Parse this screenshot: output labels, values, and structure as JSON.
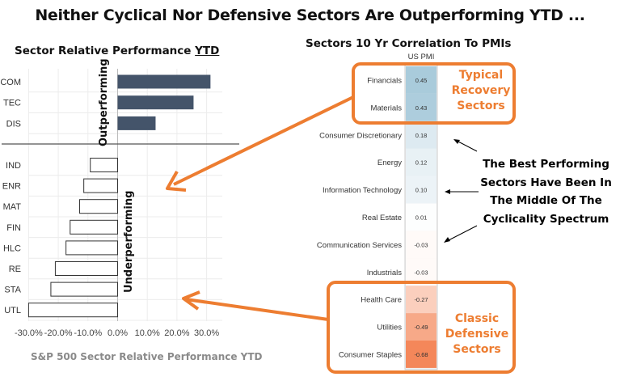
{
  "title": "Neither Cyclical Nor Defensive Sectors Are Outperforming YTD ...",
  "left_panel": {
    "title_prefix": "Sector Relative Performance ",
    "title_underlined": "YTD",
    "outperforming_label": "Outperforming",
    "underperforming_label": "Underperforming",
    "footer": "S&P 500 Sector Relative Performance YTD"
  },
  "right_panel": {
    "title": "Sectors 10 Yr Correlation To PMIs",
    "column_header": "US PMI",
    "recovery_label": "Typical Recovery Sectors",
    "defensive_label": "Classic Defensive Sectors",
    "note": "The Best Performing Sectors Have Been In The Middle Of The Cyclicality Spectrum"
  },
  "colors": {
    "accent_orange": "#ed7d31",
    "outperform_bar": "#44546a",
    "positive_corr": "#a9cbdb",
    "negative_corr": "#f4875a"
  },
  "chart_data": [
    {
      "type": "bar",
      "orientation": "horizontal",
      "categories": [
        "COM",
        "TEC",
        "DIS",
        "IND",
        "ENR",
        "MAT",
        "FIN",
        "HLC",
        "RE",
        "STA",
        "UTL"
      ],
      "values": [
        31.3,
        25.6,
        12.8,
        -9.2,
        -11.4,
        -12.8,
        -16.0,
        -17.4,
        -21.0,
        -22.5,
        -30.0
      ],
      "xlim": [
        -30,
        30
      ],
      "xticks": [
        "-30.0%",
        "-20.0%",
        "-10.0%",
        "0.0%",
        "10.0%",
        "20.0%",
        "30.0%"
      ],
      "xtick_values": [
        -30,
        -20,
        -10,
        0,
        10,
        20,
        30
      ],
      "grid": true
    },
    {
      "type": "heatmap",
      "column": "US PMI",
      "rows": [
        "Financials",
        "Materials",
        "Consumer Discretionary",
        "Energy",
        "Information Technology",
        "Real Estate",
        "Communication Services",
        "Industrials",
        "Health Care",
        "Utilities",
        "Consumer Staples"
      ],
      "values": [
        0.45,
        0.43,
        0.18,
        0.12,
        0.1,
        0.01,
        -0.03,
        -0.03,
        -0.27,
        -0.49,
        -0.68
      ],
      "labels": [
        "0.45",
        "0.43",
        "0.18",
        "0.12",
        "0.10",
        "0.01",
        "-0.03",
        "-0.03",
        "-0.27",
        "-0.49",
        "-0.68"
      ]
    }
  ]
}
